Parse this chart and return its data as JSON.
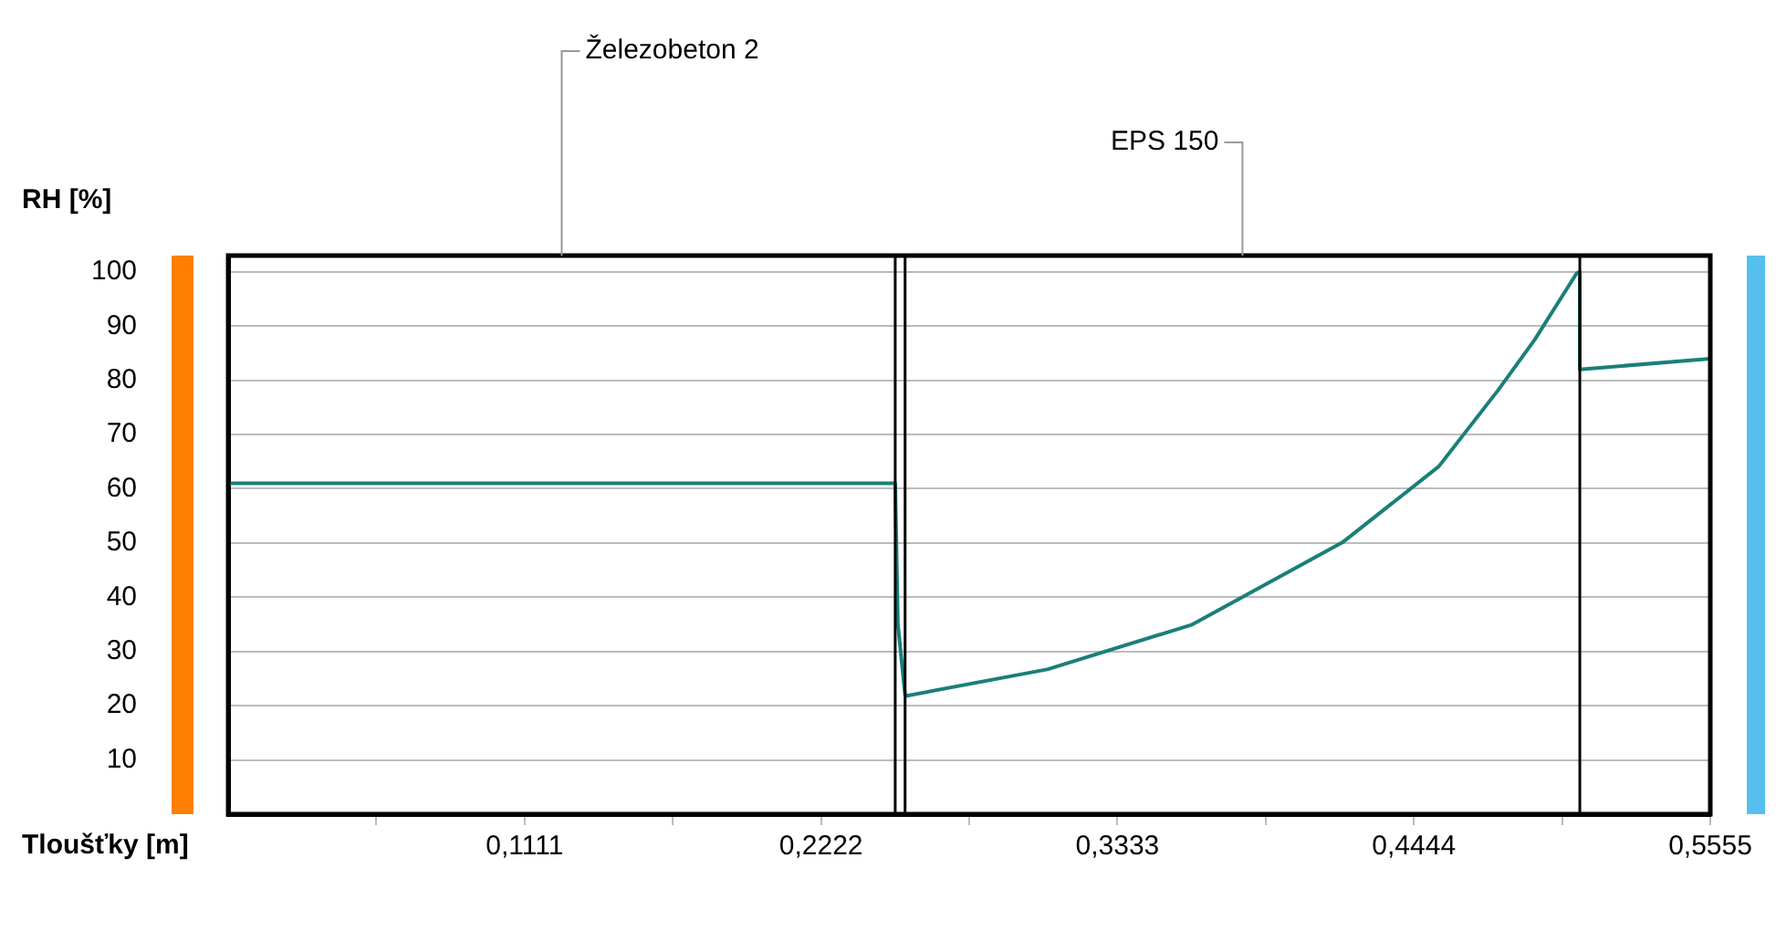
{
  "chart_data": {
    "type": "line",
    "xlabel": "Tloušťky [m]",
    "ylabel": "RH [%]",
    "x": [
      0,
      0.25,
      0.251,
      0.2537,
      0.254,
      0.307,
      0.361,
      0.4176,
      0.4537,
      0.476,
      0.4897,
      0.5055,
      0.5066,
      0.5066,
      0.5555
    ],
    "series": [
      {
        "color": "#1a7f78",
        "values": [
          61,
          61,
          35,
          22,
          21.8,
          26.7,
          34.9,
          50.1,
          64.1,
          78.2,
          87.5,
          99.8,
          100,
          82,
          84
        ]
      }
    ],
    "xlim": [
      0,
      0.5555
    ],
    "ylim": [
      0,
      103
    ],
    "xticks": [
      {
        "value": 0.05555,
        "label": null
      },
      {
        "value": 0.1111,
        "label": "0,1111"
      },
      {
        "value": 0.16665,
        "label": null
      },
      {
        "value": 0.2222,
        "label": "0,2222"
      },
      {
        "value": 0.27775,
        "label": null
      },
      {
        "value": 0.3333,
        "label": "0,3333"
      },
      {
        "value": 0.38885,
        "label": null
      },
      {
        "value": 0.4444,
        "label": "0,4444"
      },
      {
        "value": 0.49995,
        "label": null
      },
      {
        "value": 0.5555,
        "label": "0,5555"
      }
    ],
    "yticks": [
      10,
      20,
      30,
      40,
      50,
      60,
      70,
      80,
      90,
      100
    ],
    "ref_lines": [
      {
        "axis": "x",
        "value": 0.25,
        "color": "#000000"
      },
      {
        "axis": "x",
        "value": 0.2537,
        "color": "#000000"
      },
      {
        "axis": "x",
        "value": 0.5066,
        "color": "#000000"
      }
    ],
    "annotations": [
      "Železobeton 2",
      "EPS 150"
    ],
    "grid": "y",
    "marker": "none",
    "line_style": "solid",
    "legend": false
  }
}
